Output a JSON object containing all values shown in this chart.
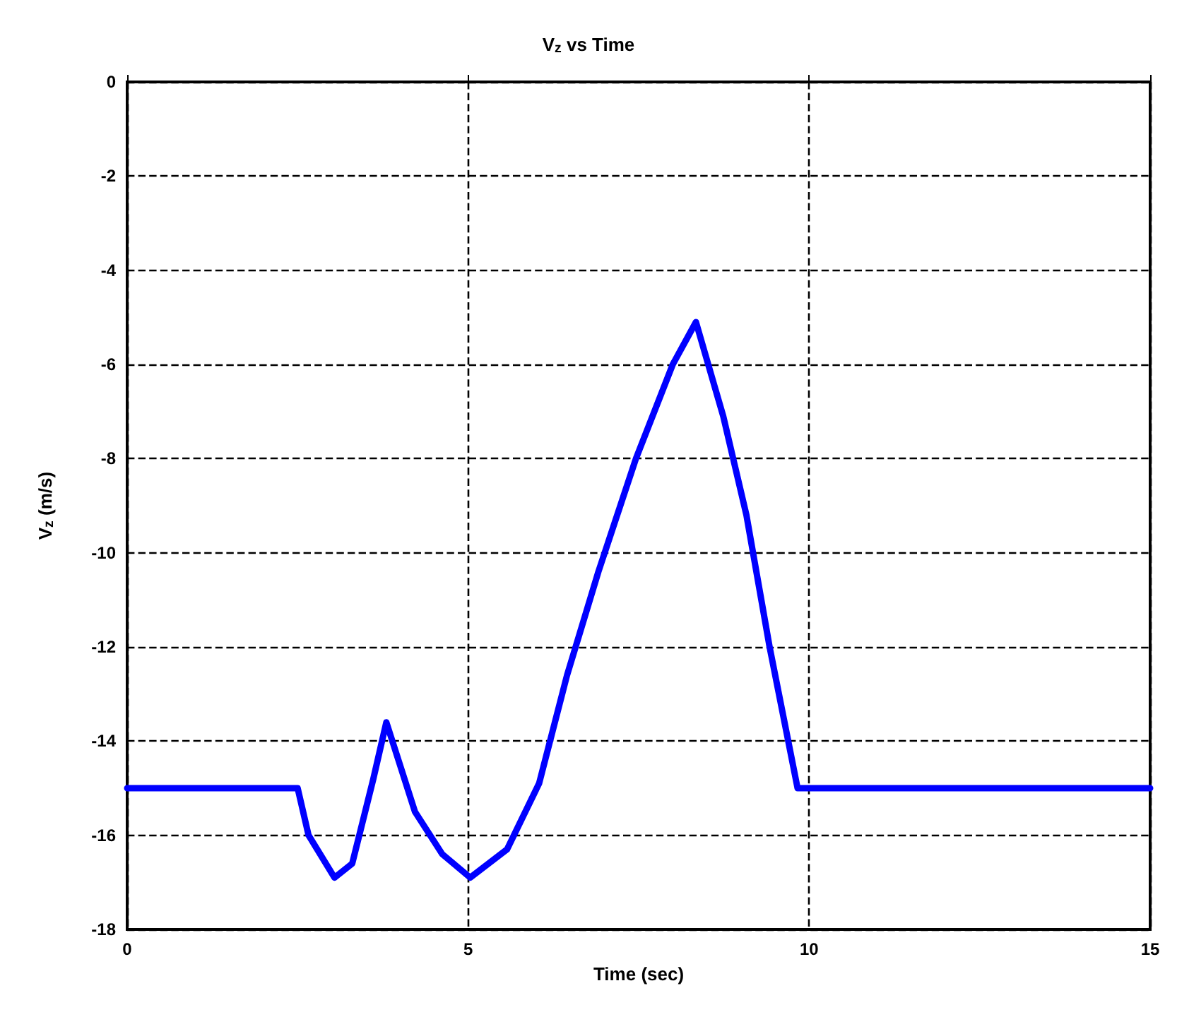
{
  "chart_data": {
    "type": "line",
    "title": "V$_{z}$ vs Time",
    "xlabel": "Time (sec)",
    "ylabel": "V$_{z}$ (m/s)",
    "x": [
      0,
      2.5,
      2.66,
      3.04,
      3.3,
      3.61,
      3.8,
      4.22,
      4.62,
      5.03,
      5.57,
      6.04,
      6.45,
      6.91,
      7.46,
      8.0,
      8.34,
      8.74,
      9.08,
      9.42,
      9.83,
      15
    ],
    "series": [
      {
        "color": "#0000ff",
        "values": [
          -15,
          -15,
          -16,
          -16.9,
          -16.6,
          -14.8,
          -13.6,
          -15.5,
          -16.4,
          -16.9,
          -16.3,
          -14.9,
          -12.6,
          -10.4,
          -8,
          -6,
          -5.1,
          -7.1,
          -9.2,
          -12,
          -15,
          -15
        ]
      }
    ],
    "xlim": [
      0,
      15
    ],
    "xticks": [
      0,
      5,
      10,
      15
    ],
    "ylim": [
      -18,
      0
    ],
    "yticks": [
      -18,
      -16,
      -14,
      -12,
      -10,
      -8,
      -6,
      -4,
      -2,
      0
    ],
    "grid": true,
    "marker": "none",
    "line_style": "solid"
  }
}
